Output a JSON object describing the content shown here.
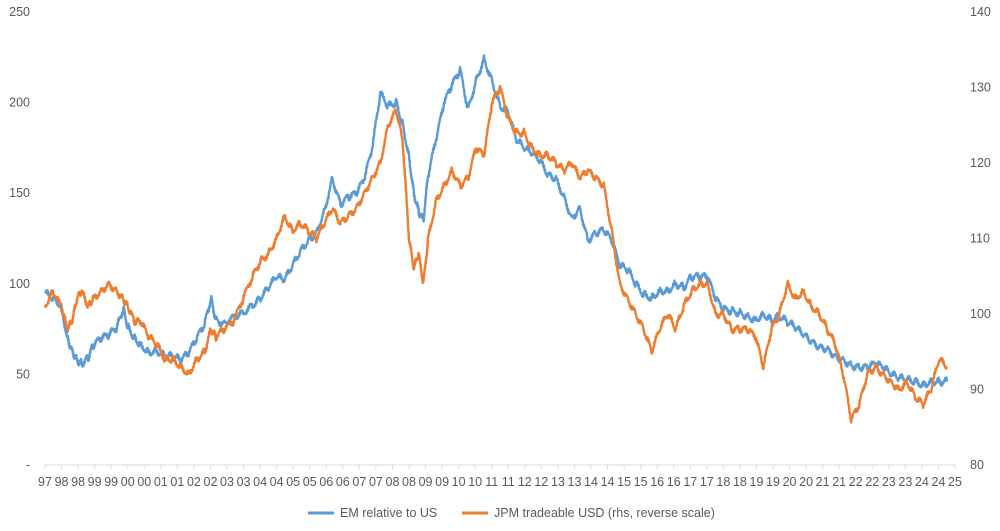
{
  "chart_data": {
    "type": "line",
    "title": "",
    "xlabel": "",
    "ylabel": "",
    "grid": false,
    "legend_position": "bottom",
    "x_tick_labels": [
      "97",
      "98",
      "98",
      "99",
      "99",
      "00",
      "00",
      "01",
      "01",
      "02",
      "02",
      "03",
      "03",
      "04",
      "04",
      "05",
      "05",
      "06",
      "06",
      "07",
      "07",
      "08",
      "08",
      "09",
      "09",
      "10",
      "10",
      "11",
      "11",
      "12",
      "12",
      "13",
      "13",
      "14",
      "14",
      "15",
      "15",
      "16",
      "16",
      "17",
      "17",
      "18",
      "18",
      "19",
      "19",
      "20",
      "20",
      "21",
      "21",
      "22",
      "22",
      "23",
      "23",
      "24",
      "24",
      "25"
    ],
    "x_range": [
      1997.0,
      2025.5
    ],
    "y_left": {
      "ticks": [
        "-",
        "50",
        "100",
        "150",
        "200",
        "250"
      ],
      "tick_values": [
        0,
        50,
        100,
        150,
        200,
        250
      ],
      "range": [
        0,
        250
      ]
    },
    "y_right": {
      "ticks": [
        "80",
        "90",
        "100",
        "110",
        "120",
        "130",
        "140"
      ],
      "tick_values": [
        80,
        90,
        100,
        110,
        120,
        130,
        140
      ],
      "range": [
        80,
        140
      ],
      "reversed_series": true
    },
    "series": [
      {
        "name": "EM relative to US",
        "axis": "left",
        "color": "#5b9bd5",
        "points": [
          [
            1997.0,
            95
          ],
          [
            1997.25,
            92
          ],
          [
            1997.5,
            88
          ],
          [
            1997.7,
            70
          ],
          [
            1997.85,
            63
          ],
          [
            1998.0,
            58
          ],
          [
            1998.15,
            56
          ],
          [
            1998.35,
            59
          ],
          [
            1998.5,
            66
          ],
          [
            1998.75,
            70
          ],
          [
            1999.0,
            72
          ],
          [
            1999.25,
            76
          ],
          [
            1999.45,
            86
          ],
          [
            1999.6,
            76
          ],
          [
            1999.8,
            70
          ],
          [
            2000.0,
            66
          ],
          [
            2000.25,
            62
          ],
          [
            2000.5,
            63
          ],
          [
            2000.75,
            60
          ],
          [
            2001.0,
            60
          ],
          [
            2001.25,
            58
          ],
          [
            2001.5,
            62
          ],
          [
            2001.75,
            70
          ],
          [
            2002.0,
            78
          ],
          [
            2002.2,
            92
          ],
          [
            2002.35,
            80
          ],
          [
            2002.6,
            78
          ],
          [
            2002.9,
            82
          ],
          [
            2003.2,
            84
          ],
          [
            2003.5,
            88
          ],
          [
            2003.75,
            92
          ],
          [
            2004.0,
            98
          ],
          [
            2004.25,
            104
          ],
          [
            2004.5,
            102
          ],
          [
            2004.75,
            110
          ],
          [
            2005.0,
            118
          ],
          [
            2005.25,
            124
          ],
          [
            2005.5,
            128
          ],
          [
            2005.75,
            140
          ],
          [
            2006.0,
            158
          ],
          [
            2006.25,
            144
          ],
          [
            2006.5,
            148
          ],
          [
            2006.75,
            150
          ],
          [
            2007.0,
            158
          ],
          [
            2007.25,
            175
          ],
          [
            2007.5,
            205
          ],
          [
            2007.75,
            198
          ],
          [
            2008.0,
            200
          ],
          [
            2008.2,
            188
          ],
          [
            2008.4,
            170
          ],
          [
            2008.55,
            150
          ],
          [
            2008.7,
            140
          ],
          [
            2008.85,
            135
          ],
          [
            2009.0,
            160
          ],
          [
            2009.25,
            180
          ],
          [
            2009.5,
            200
          ],
          [
            2009.75,
            210
          ],
          [
            2010.0,
            218
          ],
          [
            2010.25,
            196
          ],
          [
            2010.5,
            212
          ],
          [
            2010.75,
            224
          ],
          [
            2011.0,
            212
          ],
          [
            2011.25,
            198
          ],
          [
            2011.5,
            195
          ],
          [
            2011.75,
            180
          ],
          [
            2012.0,
            175
          ],
          [
            2012.25,
            172
          ],
          [
            2012.5,
            168
          ],
          [
            2012.75,
            160
          ],
          [
            2013.0,
            158
          ],
          [
            2013.25,
            148
          ],
          [
            2013.5,
            136
          ],
          [
            2013.75,
            142
          ],
          [
            2014.0,
            124
          ],
          [
            2014.25,
            128
          ],
          [
            2014.5,
            130
          ],
          [
            2014.75,
            124
          ],
          [
            2015.0,
            110
          ],
          [
            2015.25,
            108
          ],
          [
            2015.5,
            100
          ],
          [
            2015.75,
            94
          ],
          [
            2016.0,
            92
          ],
          [
            2016.25,
            96
          ],
          [
            2016.5,
            96
          ],
          [
            2016.75,
            100
          ],
          [
            2017.0,
            98
          ],
          [
            2017.25,
            104
          ],
          [
            2017.5,
            104
          ],
          [
            2017.75,
            104
          ],
          [
            2018.0,
            92
          ],
          [
            2018.25,
            86
          ],
          [
            2018.5,
            85
          ],
          [
            2018.75,
            84
          ],
          [
            2019.0,
            82
          ],
          [
            2019.25,
            80
          ],
          [
            2019.5,
            83
          ],
          [
            2019.75,
            80
          ],
          [
            2020.0,
            82
          ],
          [
            2020.25,
            79
          ],
          [
            2020.5,
            76
          ],
          [
            2020.75,
            72
          ],
          [
            2021.0,
            68
          ],
          [
            2021.25,
            65
          ],
          [
            2021.5,
            64
          ],
          [
            2021.75,
            60
          ],
          [
            2022.0,
            58
          ],
          [
            2022.25,
            55
          ],
          [
            2022.5,
            54
          ],
          [
            2022.75,
            54
          ],
          [
            2023.0,
            56
          ],
          [
            2023.25,
            54
          ],
          [
            2023.5,
            50
          ],
          [
            2023.75,
            48
          ],
          [
            2024.0,
            47
          ],
          [
            2024.25,
            46
          ],
          [
            2024.5,
            44
          ],
          [
            2024.75,
            46
          ],
          [
            2025.0,
            46
          ],
          [
            2025.25,
            46
          ]
        ]
      },
      {
        "name": "JPM tradeable USD (rhs, reverse scale)",
        "axis": "right",
        "color": "#ed7d31",
        "points": [
          [
            1997.0,
            101
          ],
          [
            1997.25,
            103
          ],
          [
            1997.5,
            101
          ],
          [
            1997.7,
            98
          ],
          [
            1997.85,
            99
          ],
          [
            1998.0,
            102
          ],
          [
            1998.15,
            103
          ],
          [
            1998.35,
            101
          ],
          [
            1998.5,
            102
          ],
          [
            1998.75,
            103
          ],
          [
            1999.0,
            104
          ],
          [
            1999.25,
            103
          ],
          [
            1999.45,
            102
          ],
          [
            1999.6,
            101
          ],
          [
            1999.8,
            99
          ],
          [
            2000.0,
            99
          ],
          [
            2000.25,
            97
          ],
          [
            2000.5,
            96
          ],
          [
            2000.75,
            94
          ],
          [
            2001.0,
            94
          ],
          [
            2001.25,
            93
          ],
          [
            2001.5,
            92
          ],
          [
            2001.75,
            94
          ],
          [
            2002.0,
            95
          ],
          [
            2002.2,
            98
          ],
          [
            2002.35,
            97
          ],
          [
            2002.6,
            98
          ],
          [
            2002.9,
            99
          ],
          [
            2003.2,
            102
          ],
          [
            2003.5,
            105
          ],
          [
            2003.75,
            107
          ],
          [
            2004.0,
            108
          ],
          [
            2004.25,
            110
          ],
          [
            2004.5,
            113
          ],
          [
            2004.75,
            111
          ],
          [
            2005.0,
            112
          ],
          [
            2005.25,
            111
          ],
          [
            2005.5,
            110
          ],
          [
            2005.75,
            112
          ],
          [
            2006.0,
            114
          ],
          [
            2006.25,
            112
          ],
          [
            2006.5,
            113
          ],
          [
            2006.75,
            114
          ],
          [
            2007.0,
            116
          ],
          [
            2007.25,
            118
          ],
          [
            2007.5,
            120
          ],
          [
            2007.75,
            125
          ],
          [
            2008.0,
            127
          ],
          [
            2008.2,
            123
          ],
          [
            2008.4,
            110
          ],
          [
            2008.55,
            106
          ],
          [
            2008.7,
            108
          ],
          [
            2008.85,
            104
          ],
          [
            2009.0,
            110
          ],
          [
            2009.25,
            115
          ],
          [
            2009.5,
            117
          ],
          [
            2009.75,
            119
          ],
          [
            2010.0,
            117
          ],
          [
            2010.25,
            118
          ],
          [
            2010.5,
            122
          ],
          [
            2010.75,
            121
          ],
          [
            2011.0,
            128
          ],
          [
            2011.25,
            130
          ],
          [
            2011.5,
            126
          ],
          [
            2011.75,
            124
          ],
          [
            2012.0,
            124
          ],
          [
            2012.25,
            122
          ],
          [
            2012.5,
            121
          ],
          [
            2012.75,
            121
          ],
          [
            2013.0,
            120
          ],
          [
            2013.25,
            119
          ],
          [
            2013.5,
            120
          ],
          [
            2013.75,
            118
          ],
          [
            2014.0,
            119
          ],
          [
            2014.25,
            118
          ],
          [
            2014.5,
            117
          ],
          [
            2014.75,
            111
          ],
          [
            2015.0,
            104
          ],
          [
            2015.25,
            102
          ],
          [
            2015.5,
            100
          ],
          [
            2015.75,
            98
          ],
          [
            2016.0,
            95
          ],
          [
            2016.25,
            98
          ],
          [
            2016.5,
            100
          ],
          [
            2016.75,
            98
          ],
          [
            2017.0,
            101
          ],
          [
            2017.25,
            103
          ],
          [
            2017.5,
            104
          ],
          [
            2017.75,
            104
          ],
          [
            2018.0,
            100
          ],
          [
            2018.25,
            100
          ],
          [
            2018.5,
            98
          ],
          [
            2018.75,
            98
          ],
          [
            2019.0,
            98
          ],
          [
            2019.25,
            97
          ],
          [
            2019.5,
            93
          ],
          [
            2019.75,
            98
          ],
          [
            2020.0,
            100
          ],
          [
            2020.25,
            104
          ],
          [
            2020.5,
            102
          ],
          [
            2020.75,
            103
          ],
          [
            2021.0,
            101
          ],
          [
            2021.25,
            100
          ],
          [
            2021.5,
            98
          ],
          [
            2021.75,
            96
          ],
          [
            2022.0,
            92
          ],
          [
            2022.25,
            86
          ],
          [
            2022.5,
            88
          ],
          [
            2022.75,
            92
          ],
          [
            2023.0,
            93
          ],
          [
            2023.25,
            92
          ],
          [
            2023.5,
            91
          ],
          [
            2023.75,
            90
          ],
          [
            2024.0,
            91
          ],
          [
            2024.25,
            89
          ],
          [
            2024.5,
            88
          ],
          [
            2024.75,
            90
          ],
          [
            2025.0,
            94
          ],
          [
            2025.25,
            93
          ]
        ]
      }
    ]
  }
}
